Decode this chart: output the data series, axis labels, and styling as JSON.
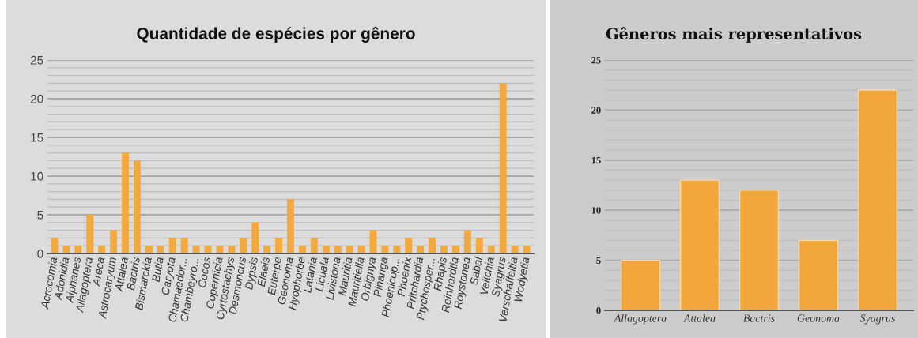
{
  "chart_data": [
    {
      "type": "bar",
      "title": "Quantidade de espécies por gênero",
      "color": "#f4a93c",
      "categories": [
        "Acrocomia",
        "Adonidia",
        "Aiphanes",
        "Allagoptera",
        "Areca",
        "Astrocaryum",
        "Attalea",
        "Bactris",
        "Bismarckia",
        "Butia",
        "Caryota",
        "Chamaedor...",
        "Chambeyro...",
        "Cocos",
        "Copernicia",
        "Cyrtostachys",
        "Desmoncus",
        "Dypsis",
        "Elaeis",
        "Euterpe",
        "Geonoma",
        "Hyophorbe",
        "Latania",
        "Licuala",
        "Livistona",
        "Mauritia",
        "Mauritiella",
        "Orbignya",
        "Pinanga",
        "Phoenicop...",
        "Phoenix",
        "Pritchardia",
        "Ptychosper...",
        "Rhapis",
        "Reinhardtia",
        "Roystonea",
        "Sabal",
        "Veitchia",
        "Syagrus",
        "Verschaffeltia",
        "Wodyetia"
      ],
      "values": [
        2,
        1,
        1,
        5,
        1,
        3,
        13,
        12,
        1,
        1,
        2,
        2,
        1,
        1,
        1,
        1,
        2,
        4,
        1,
        2,
        7,
        1,
        2,
        1,
        1,
        1,
        1,
        3,
        1,
        1,
        2,
        1,
        2,
        1,
        1,
        3,
        2,
        1,
        22,
        1,
        1
      ],
      "ylim": [
        0,
        25
      ],
      "yticks": [
        0,
        5,
        10,
        15,
        20,
        25
      ],
      "grid": "y"
    },
    {
      "type": "bar",
      "title": "Gêneros mais representativos",
      "color": "#f0a63a",
      "categories": [
        "Allagoptera",
        "Attalea",
        "Bactris",
        "Geonoma",
        "Syagrus"
      ],
      "values": [
        5,
        13,
        12,
        7,
        22
      ],
      "ylim": [
        0,
        25
      ],
      "yticks": [
        0,
        5,
        10,
        15,
        20,
        25
      ],
      "grid": "y"
    }
  ]
}
